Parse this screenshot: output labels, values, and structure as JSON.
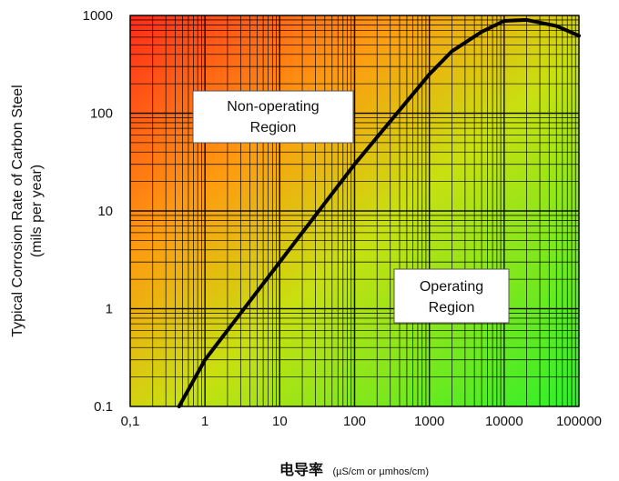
{
  "chart_data": {
    "type": "line",
    "x_scale": "log",
    "y_scale": "log",
    "xlim": [
      0.1,
      100000
    ],
    "ylim": [
      0.1,
      1000
    ],
    "x_ticks": [
      "0,1",
      "1",
      "10",
      "100",
      "1000",
      "10000",
      "100000"
    ],
    "y_ticks": [
      "1000",
      "100",
      "10",
      "1",
      "0.1"
    ],
    "ylabel_line1": "Typical Corrosion Rate of Carbon Steel",
    "ylabel_line2": "(mils per year)",
    "xlabel_main": "电导率",
    "xlabel_unit": "(µS/cm or µmhos/cm)",
    "grid": true,
    "background": "gradient red (top-left) to green (bottom-right)",
    "gradient_colors": {
      "red": "#ff2a1a",
      "orange": "#ff9a10",
      "yellow": "#c8e010",
      "green": "#2cf02a"
    },
    "series": [
      {
        "color": "#000000",
        "x": [
          0.45,
          1,
          10,
          100,
          1000,
          2000,
          5000,
          10000,
          20000,
          50000,
          100000
        ],
        "y": [
          0.1,
          0.3,
          3,
          30,
          250,
          430,
          680,
          880,
          900,
          780,
          620
        ]
      }
    ],
    "annotations": [
      {
        "line1": "Non-operating",
        "line2": "Region"
      },
      {
        "line1": "Operating",
        "line2": "Region"
      }
    ]
  }
}
